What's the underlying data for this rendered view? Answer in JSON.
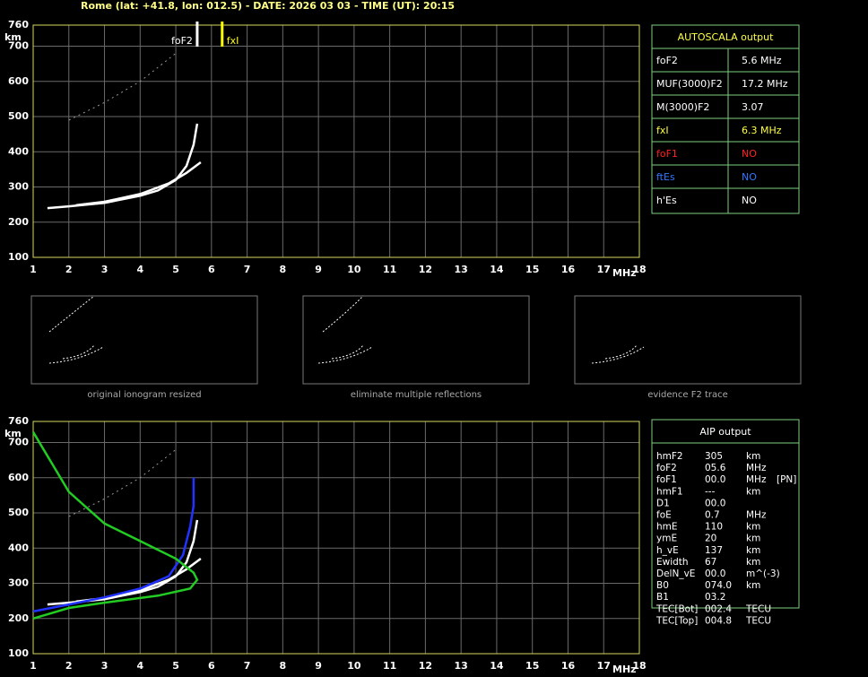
{
  "header": {
    "title": "Rome (lat: +41.8, lon: 012.5) - DATE: 2026 03 03 - TIME (UT): 20:15"
  },
  "chart_data": [
    {
      "type": "line",
      "x_label": "MHz",
      "y_label": "km",
      "xlim": [
        1,
        18
      ],
      "ylim": [
        100,
        760
      ],
      "xticks": [
        1,
        2,
        3,
        4,
        5,
        6,
        7,
        8,
        9,
        10,
        11,
        12,
        13,
        14,
        15,
        16,
        17,
        18
      ],
      "yticks": [
        100,
        200,
        300,
        400,
        500,
        600,
        700,
        760
      ],
      "grid": true,
      "series": [
        {
          "color": "#ffffff",
          "x": [
            1.4,
            2,
            3,
            4,
            4.5,
            5,
            5.3,
            5.5,
            5.6
          ],
          "values": [
            240,
            245,
            255,
            275,
            290,
            320,
            360,
            420,
            480
          ]
        },
        {
          "color": "#ffffff",
          "x": [
            2.2,
            3,
            4,
            4.8,
            5.3,
            5.7
          ],
          "values": [
            248,
            258,
            280,
            310,
            340,
            370
          ]
        },
        {
          "color": "#999999",
          "x": [
            2,
            3,
            4,
            5
          ],
          "values": [
            490,
            540,
            600,
            680
          ]
        }
      ],
      "markers": [
        {
          "label": "foF2",
          "x": 5.6,
          "color": "#ffffff"
        },
        {
          "label": "fxI",
          "x": 6.3,
          "color": "#ffff00"
        }
      ]
    },
    {
      "type": "line",
      "x_label": "MHz",
      "y_label": "km",
      "xlim": [
        1,
        18
      ],
      "ylim": [
        100,
        760
      ],
      "xticks": [
        1,
        2,
        3,
        4,
        5,
        6,
        7,
        8,
        9,
        10,
        11,
        12,
        13,
        14,
        15,
        16,
        17,
        18
      ],
      "yticks": [
        100,
        200,
        300,
        400,
        500,
        600,
        700,
        760
      ],
      "grid": true,
      "series": [
        {
          "color": "#ffffff",
          "x": [
            1.4,
            2,
            3,
            4,
            4.5,
            5,
            5.3,
            5.5,
            5.6
          ],
          "values": [
            240,
            245,
            255,
            275,
            290,
            320,
            360,
            420,
            480
          ]
        },
        {
          "color": "#ffffff",
          "x": [
            2.2,
            3,
            4,
            4.8,
            5.3,
            5.7
          ],
          "values": [
            248,
            258,
            280,
            310,
            340,
            370
          ]
        },
        {
          "color": "#2233ff",
          "x": [
            1,
            2,
            3,
            4,
            4.8,
            5.2,
            5.4,
            5.5,
            5.5
          ],
          "values": [
            220,
            240,
            260,
            285,
            320,
            380,
            460,
            520,
            600
          ]
        },
        {
          "color": "#22cc22",
          "x": [
            1,
            2,
            3,
            4,
            5,
            5.5,
            5.6,
            5.4,
            4.5,
            3,
            2,
            1
          ],
          "values": [
            730,
            560,
            470,
            420,
            370,
            330,
            310,
            285,
            265,
            245,
            230,
            200
          ]
        },
        {
          "color": "#999999",
          "x": [
            2,
            3,
            4,
            5
          ],
          "values": [
            490,
            540,
            600,
            680
          ]
        }
      ],
      "markers": []
    }
  ],
  "autoscala": {
    "title": "AUTOSCALA output",
    "rows": [
      {
        "label": "foF2",
        "value": "5.6 MHz",
        "color": "#ffffff"
      },
      {
        "label": "MUF(3000)F2",
        "value": "17.2 MHz",
        "color": "#ffffff"
      },
      {
        "label": "M(3000)F2",
        "value": "3.07",
        "color": "#ffffff"
      },
      {
        "label": "fxI",
        "value": "6.3 MHz",
        "color": "#ffff44"
      },
      {
        "label": "foF1",
        "value": "NO",
        "color": "#ff2222"
      },
      {
        "label": "ftEs",
        "value": "NO",
        "color": "#3377ff"
      },
      {
        "label": "h'Es",
        "value": "NO",
        "color": "#ffffff"
      }
    ]
  },
  "thumbnails": [
    {
      "caption": "original ionogram resized"
    },
    {
      "caption": "eliminate multiple reflections"
    },
    {
      "caption": "evidence F2 trace"
    }
  ],
  "aip": {
    "title": "AIP output",
    "rows": [
      [
        "hmF2",
        "305",
        "km"
      ],
      [
        "foF2",
        "05.6",
        "MHz"
      ],
      [
        "foF1",
        "00.0",
        "MHz",
        "[PN]"
      ],
      [
        "hmF1",
        "---",
        "km"
      ],
      [
        "D1",
        "00.0"
      ],
      [
        "foE",
        "0.7",
        "MHz"
      ],
      [
        "hmE",
        "110",
        "km"
      ],
      [
        "ymE",
        "20",
        "km"
      ],
      [
        "h_vE",
        "137",
        "km"
      ],
      [
        "Ewidth",
        "67",
        "km"
      ],
      [
        "DelN_vE",
        "00.0",
        "m^(-3)"
      ],
      [
        "B0",
        "074.0",
        "km"
      ],
      [
        "B1",
        "03.2"
      ],
      [
        "TEC[Bot]",
        "002.4",
        "TECU"
      ],
      [
        "TEC[Top]",
        "004.8",
        "TECU"
      ]
    ]
  }
}
